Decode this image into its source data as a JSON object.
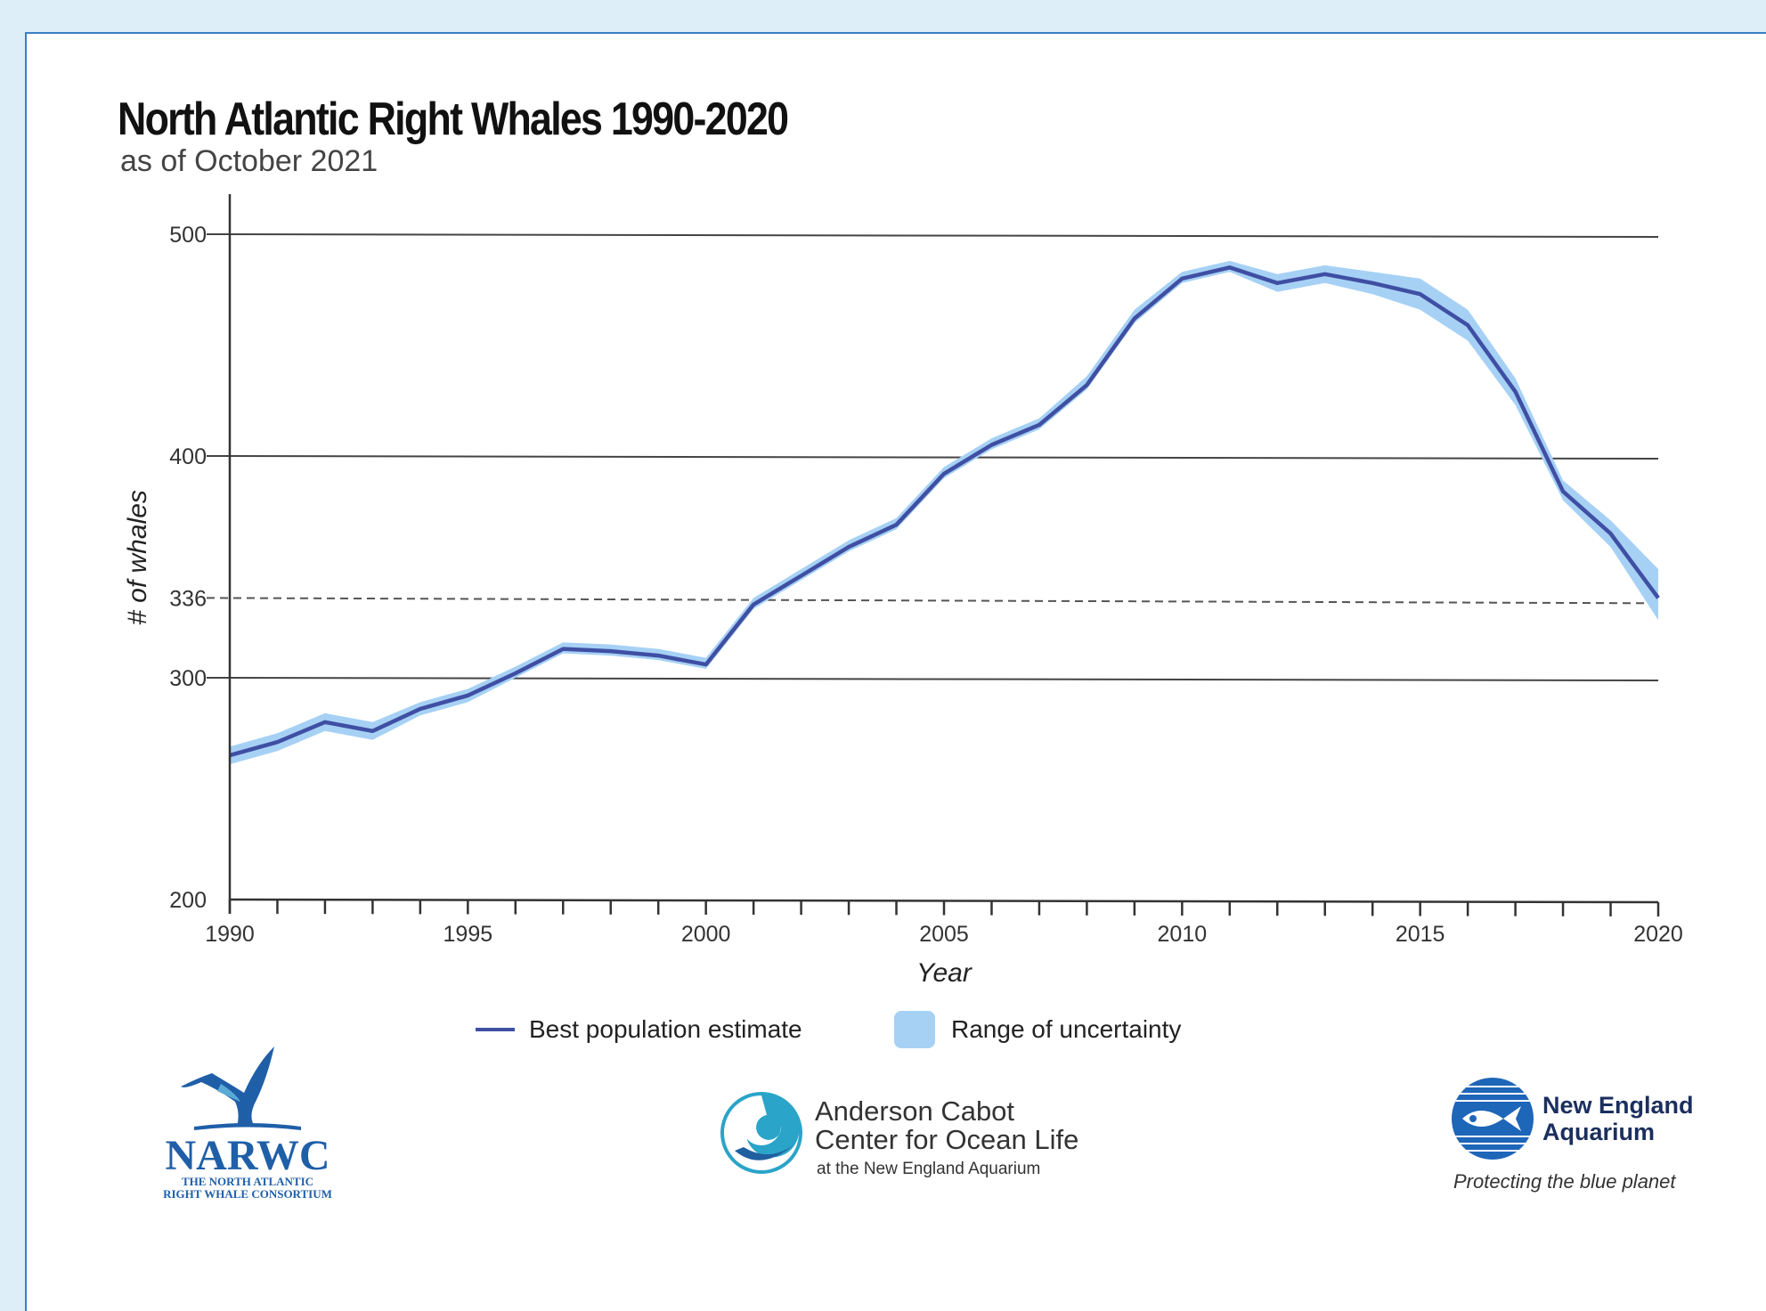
{
  "header": {
    "title": "North Atlantic Right Whales 1990-2020",
    "subtitle": "as of October 2021"
  },
  "chart_data": {
    "type": "line",
    "title": "North Atlantic Right Whales 1990-2020",
    "subtitle": "as of October 2021",
    "xlabel": "Year",
    "ylabel": "# of whales",
    "xlim": [
      1990,
      2020
    ],
    "ylim": [
      200,
      520
    ],
    "x_ticks": [
      1990,
      1995,
      2000,
      2005,
      2010,
      2015,
      2020
    ],
    "y_ticks": [
      200,
      300,
      400,
      500
    ],
    "y_gridlines": [
      300,
      400,
      500
    ],
    "reference_line": {
      "value": 336,
      "label": "336",
      "style": "dashed"
    },
    "x": [
      1990,
      1991,
      1992,
      1993,
      1994,
      1995,
      1996,
      1997,
      1998,
      1999,
      2000,
      2001,
      2002,
      2003,
      2004,
      2005,
      2006,
      2007,
      2008,
      2009,
      2010,
      2011,
      2012,
      2013,
      2014,
      2015,
      2016,
      2017,
      2018,
      2019,
      2020
    ],
    "series": [
      {
        "name": "Best population estimate",
        "values": [
          265,
          271,
          280,
          276,
          286,
          292,
          302,
          313,
          312,
          310,
          306,
          333,
          346,
          359,
          369,
          392,
          405,
          414,
          432,
          462,
          480,
          485,
          478,
          482,
          478,
          473,
          459,
          429,
          384,
          365,
          336
        ],
        "color": "#3f4fa3"
      },
      {
        "name": "Range of uncertainty",
        "lower": [
          261,
          267,
          276,
          272,
          283,
          289,
          300,
          311,
          310,
          308,
          304,
          331,
          344,
          357,
          367,
          390,
          403,
          412,
          430,
          460,
          478,
          483,
          474,
          478,
          473,
          466,
          452,
          423,
          380,
          359,
          326
        ],
        "upper": [
          269,
          275,
          284,
          280,
          289,
          295,
          305,
          316,
          315,
          313,
          309,
          336,
          349,
          362,
          372,
          395,
          408,
          417,
          436,
          466,
          483,
          488,
          482,
          486,
          483,
          480,
          466,
          435,
          389,
          371,
          349
        ],
        "color": "#a6d1f5"
      }
    ],
    "legend_position": "bottom-center"
  },
  "legend": {
    "line_label": "Best population estimate",
    "band_label": "Range of uncertainty"
  },
  "logos": {
    "narwc": {
      "name": "NARWC",
      "line1": "THE NORTH ATLANTIC",
      "line2": "RIGHT WHALE CONSORTIUM"
    },
    "acol": {
      "line1": "Anderson Cabot",
      "line2": "Center for Ocean Life",
      "line3": "at the New England Aquarium"
    },
    "nea": {
      "line1": "New England",
      "line2": "Aquarium",
      "tagline": "Protecting the blue planet"
    }
  },
  "colors": {
    "background": "#deeef9",
    "line": "#3f4fa3",
    "band": "#a6d1f5",
    "narwc_blue": "#1f5fa8",
    "nea_blue": "#1e66b8"
  }
}
